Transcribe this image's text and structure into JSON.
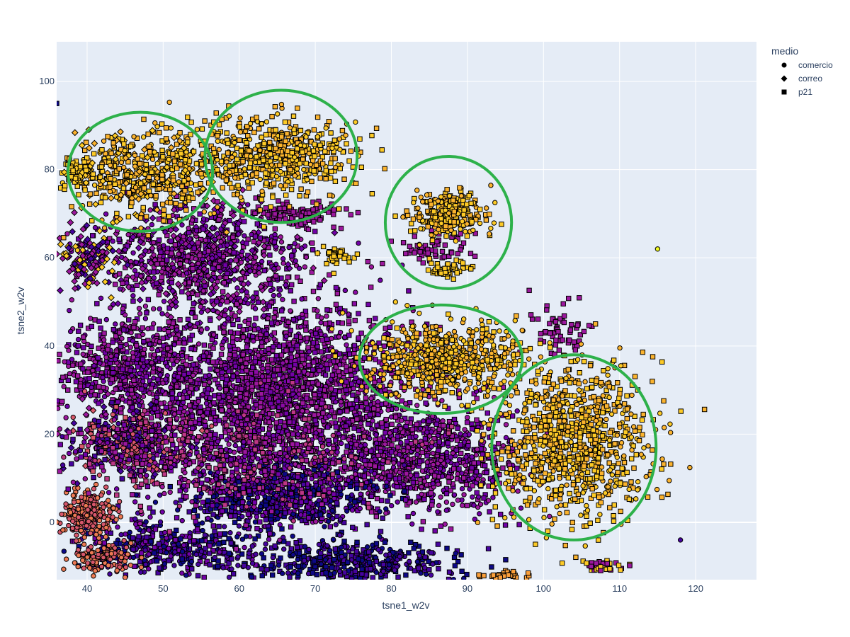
{
  "chart_data": {
    "type": "scatter",
    "title": "",
    "xlabel": "tsne1_w2v",
    "ylabel": "tsne2_w2v",
    "xlim": [
      36,
      128
    ],
    "ylim": [
      -13,
      109
    ],
    "x_ticks": [
      40,
      50,
      60,
      70,
      80,
      90,
      100,
      110,
      120
    ],
    "y_ticks": [
      0,
      20,
      40,
      60,
      80,
      100
    ],
    "x_tick_labels": [
      "40",
      "50",
      "60",
      "70",
      "80",
      "90",
      "100",
      "110",
      "120"
    ],
    "y_tick_labels": [
      "0",
      "20",
      "40",
      "60",
      "80",
      "100"
    ],
    "grid": true,
    "legend": {
      "title": "medio",
      "placement": "top-right",
      "entries": [
        {
          "label": "comercio",
          "marker": "circle"
        },
        {
          "label": "correo",
          "marker": "diamond"
        },
        {
          "label": "p21",
          "marker": "square"
        }
      ]
    },
    "colors": {
      "plot_background": "#e5ecf6",
      "grid": "#ffffff",
      "annotation_ellipse": "#2db14a",
      "marker_outline": "#000000",
      "palette": [
        "#0d0887",
        "#46039f",
        "#7201a8",
        "#9c179e",
        "#bd3786",
        "#d8576b",
        "#ed7953",
        "#fb9f3a",
        "#fdca26",
        "#f0f921"
      ]
    },
    "clusters": [
      {
        "cx": 47,
        "cy": 79,
        "sx": 5.5,
        "sy": 5,
        "n": 520,
        "colors": [
          "#fdca26",
          "#fbb32e"
        ],
        "markers": [
          "square",
          "diamond",
          "square",
          "circle"
        ]
      },
      {
        "cx": 39,
        "cy": 79,
        "sx": 1.5,
        "sy": 1.5,
        "n": 60,
        "colors": [
          "#fdca26"
        ],
        "markers": [
          "diamond",
          "square"
        ]
      },
      {
        "cx": 65,
        "cy": 83,
        "sx": 5.5,
        "sy": 4.5,
        "n": 560,
        "colors": [
          "#fdca26",
          "#fbb32e"
        ],
        "markers": [
          "square",
          "circle",
          "square"
        ]
      },
      {
        "cx": 87.5,
        "cy": 70,
        "sx": 2.5,
        "sy": 2.5,
        "n": 260,
        "colors": [
          "#fdca26",
          "#fbb32e"
        ],
        "markers": [
          "circle",
          "square"
        ]
      },
      {
        "cx": 88,
        "cy": 57.5,
        "sx": 1.5,
        "sy": 1,
        "n": 50,
        "colors": [
          "#fdca26"
        ],
        "markers": [
          "square"
        ]
      },
      {
        "cx": 73,
        "cy": 60,
        "sx": 1.2,
        "sy": 1,
        "n": 40,
        "colors": [
          "#fdca26"
        ],
        "markers": [
          "square"
        ]
      },
      {
        "cx": 87,
        "cy": 37,
        "sx": 5,
        "sy": 4,
        "n": 620,
        "colors": [
          "#fdca26",
          "#fbb32e"
        ],
        "markers": [
          "circle",
          "square",
          "circle"
        ]
      },
      {
        "cx": 104,
        "cy": 18,
        "sx": 5,
        "sy": 9,
        "n": 900,
        "colors": [
          "#fdca26",
          "#fbb32e"
        ],
        "markers": [
          "square",
          "circle",
          "square"
        ]
      },
      {
        "cx": 65,
        "cy": 30,
        "sx": 9,
        "sy": 10,
        "n": 2200,
        "colors": [
          "#9c179e",
          "#7201a8",
          "#8b0aa5"
        ],
        "markers": [
          "square",
          "circle",
          "square"
        ]
      },
      {
        "cx": 55,
        "cy": 60,
        "sx": 7,
        "sy": 6,
        "n": 900,
        "colors": [
          "#9c179e",
          "#7201a8"
        ],
        "markers": [
          "square",
          "diamond",
          "circle"
        ]
      },
      {
        "cx": 45,
        "cy": 35,
        "sx": 5,
        "sy": 6,
        "n": 600,
        "colors": [
          "#9c179e",
          "#7201a8"
        ],
        "markers": [
          "square",
          "circle"
        ]
      },
      {
        "cx": 85,
        "cy": 14,
        "sx": 6,
        "sy": 6,
        "n": 800,
        "colors": [
          "#9c179e",
          "#7201a8"
        ],
        "markers": [
          "square",
          "circle"
        ]
      },
      {
        "cx": 66,
        "cy": 6,
        "sx": 6,
        "sy": 4,
        "n": 700,
        "colors": [
          "#46039f",
          "#7201a8",
          "#0d0887"
        ],
        "markers": [
          "square",
          "circle"
        ]
      },
      {
        "cx": 50,
        "cy": -6,
        "sx": 6,
        "sy": 3,
        "n": 400,
        "colors": [
          "#46039f",
          "#0d0887",
          "#7201a8"
        ],
        "markers": [
          "square",
          "circle"
        ]
      },
      {
        "cx": 75,
        "cy": -9,
        "sx": 7,
        "sy": 2.5,
        "n": 450,
        "colors": [
          "#46039f",
          "#0d0887"
        ],
        "markers": [
          "square",
          "circle"
        ]
      },
      {
        "cx": 40,
        "cy": 2,
        "sx": 1.8,
        "sy": 2.5,
        "n": 260,
        "colors": [
          "#ed7953",
          "#d8576b"
        ],
        "markers": [
          "circle"
        ]
      },
      {
        "cx": 42,
        "cy": -8,
        "sx": 2,
        "sy": 1.5,
        "n": 120,
        "colors": [
          "#ed7953",
          "#d8576b"
        ],
        "markers": [
          "circle"
        ]
      },
      {
        "cx": 45,
        "cy": 18,
        "sx": 4,
        "sy": 4,
        "n": 350,
        "colors": [
          "#9c179e",
          "#d8576b",
          "#46039f"
        ],
        "markers": [
          "square",
          "circle",
          "diamond"
        ]
      },
      {
        "cx": 40,
        "cy": 60,
        "sx": 2,
        "sy": 3,
        "n": 120,
        "colors": [
          "#9c179e",
          "#fdca26",
          "#46039f"
        ],
        "markers": [
          "diamond"
        ]
      },
      {
        "cx": 102,
        "cy": 44,
        "sx": 2,
        "sy": 3,
        "n": 60,
        "colors": [
          "#9c179e"
        ],
        "markers": [
          "square"
        ]
      },
      {
        "cx": 85,
        "cy": 62,
        "sx": 2.5,
        "sy": 1.5,
        "n": 60,
        "colors": [
          "#9c179e"
        ],
        "markers": [
          "square"
        ]
      },
      {
        "cx": 68,
        "cy": 70,
        "sx": 3,
        "sy": 1.5,
        "n": 100,
        "colors": [
          "#9c179e"
        ],
        "markers": [
          "square"
        ]
      },
      {
        "cx": 108,
        "cy": -10,
        "sx": 1.5,
        "sy": 0.6,
        "n": 40,
        "colors": [
          "#9c179e",
          "#fdca26"
        ],
        "markers": [
          "square"
        ]
      },
      {
        "cx": 95,
        "cy": -12,
        "sx": 1.5,
        "sy": 0.5,
        "n": 30,
        "colors": [
          "#fb9f3a"
        ],
        "markers": [
          "square"
        ]
      },
      {
        "cx": 60,
        "cy": 15,
        "sx": 10,
        "sy": 6,
        "n": 600,
        "colors": [
          "#9c179e",
          "#7201a8",
          "#bd3786"
        ],
        "markers": [
          "square",
          "circle"
        ]
      }
    ],
    "outliers": [
      {
        "x": 115,
        "y": 62,
        "color": "#f0f921",
        "marker": "circle"
      },
      {
        "x": 118,
        "y": -4,
        "color": "#46039f",
        "marker": "circle"
      },
      {
        "x": 36,
        "y": 95,
        "color": "#0d0887",
        "marker": "square"
      }
    ],
    "annotations": [
      {
        "shape": "ellipse",
        "cx": 47,
        "cy": 79.5,
        "rx": 9.5,
        "ry": 13.5
      },
      {
        "shape": "ellipse",
        "cx": 65.5,
        "cy": 83,
        "rx": 10,
        "ry": 15
      },
      {
        "shape": "ellipse",
        "cx": 87.5,
        "cy": 68,
        "rx": 8.3,
        "ry": 15
      },
      {
        "shape": "ellipse",
        "cx": 86.5,
        "cy": 37,
        "rx": 10.7,
        "ry": 12.3
      },
      {
        "shape": "ellipse",
        "cx": 104,
        "cy": 17,
        "rx": 10.8,
        "ry": 21
      }
    ]
  }
}
